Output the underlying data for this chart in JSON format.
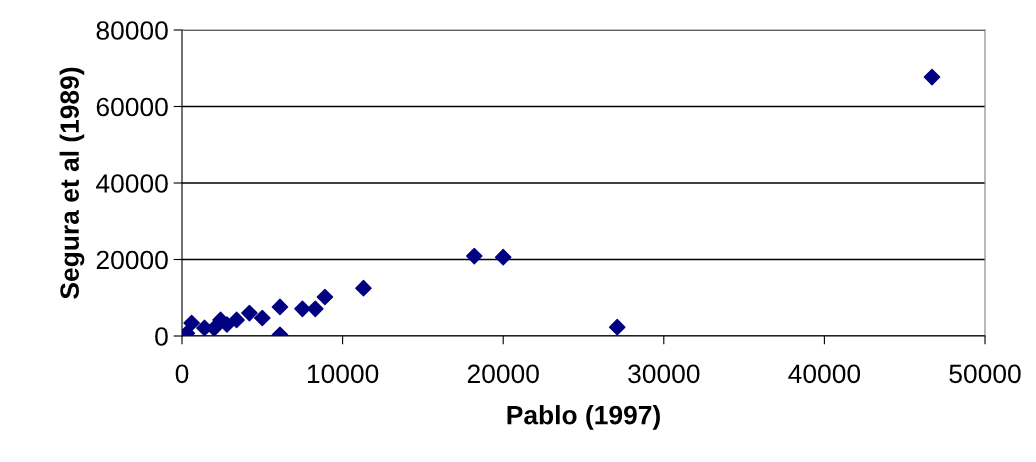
{
  "chart_data": {
    "type": "scatter",
    "xlabel": "Pablo (1997)",
    "ylabel": "Segura et al (1989)",
    "marker": "diamond",
    "grid": "y",
    "legend": false,
    "series": [
      {
        "color": "#000080",
        "x": [
          300,
          600,
          1400,
          2000,
          2400,
          2800,
          3400,
          4200,
          5000,
          6100,
          6100,
          7500,
          8300,
          8900,
          11300,
          18200,
          20000,
          27100,
          46700
        ],
        "values": [
          700,
          3400,
          2100,
          2000,
          4200,
          3000,
          4200,
          6000,
          4700,
          300,
          7600,
          7100,
          7100,
          10200,
          12500,
          20900,
          20600,
          2300,
          67700
        ]
      }
    ],
    "xlim": [
      0,
      50000
    ],
    "xticks": [
      0,
      10000,
      20000,
      30000,
      40000,
      50000
    ],
    "ylim": [
      0,
      80000
    ],
    "yticks": [
      0,
      20000,
      40000,
      60000,
      80000
    ]
  }
}
